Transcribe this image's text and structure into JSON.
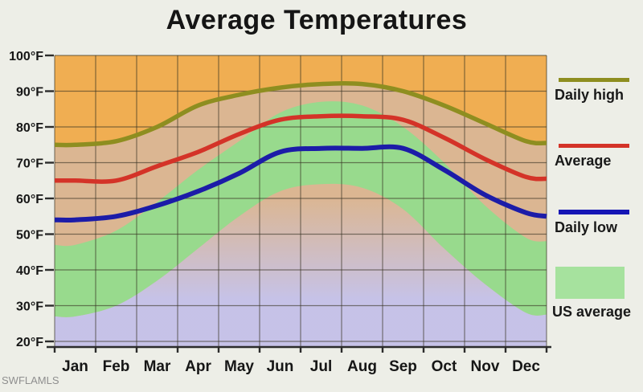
{
  "chart_data": {
    "type": "line",
    "title": "Average Temperatures",
    "categories": [
      "Jan",
      "Feb",
      "Mar",
      "Apr",
      "May",
      "Jun",
      "Jul",
      "Aug",
      "Sep",
      "Oct",
      "Nov",
      "Dec"
    ],
    "y_ticks": [
      100,
      90,
      80,
      70,
      60,
      50,
      40,
      30,
      20
    ],
    "y_unit": "°F",
    "ylim": [
      20,
      100
    ],
    "grid": true,
    "legend_position": "right",
    "series": [
      {
        "name": "Daily high",
        "color": "#8e8e20",
        "values": [
          75,
          76,
          80,
          86,
          89,
          91,
          92,
          92,
          90,
          86,
          81,
          76
        ]
      },
      {
        "name": "Average",
        "color": "#d43328",
        "values": [
          65,
          65,
          69,
          73,
          78,
          82,
          83,
          83,
          82,
          77,
          71,
          66
        ]
      },
      {
        "name": "Daily low",
        "color": "#1c1ca8",
        "values": [
          54,
          55,
          58,
          62,
          67,
          73,
          74,
          74,
          74,
          68,
          61,
          56
        ]
      }
    ],
    "us_average_band": {
      "name": "US average",
      "high": [
        47,
        51,
        59,
        68,
        76,
        84,
        87,
        86,
        80,
        70,
        58,
        49
      ],
      "low": [
        27,
        30,
        37,
        46,
        55,
        62,
        64,
        63,
        57,
        46,
        36,
        28
      ],
      "color": "rgba(140,224,140,0.85)"
    },
    "background_colors": {
      "above_high_zone": "#f0ae52",
      "local_band_overlay": "rgba(210,186,170,0.72)",
      "below_us_low_zone": "rgba(197,195,236,0.95)"
    },
    "gridline_color": "rgba(55,50,35,0.6)",
    "axis_color": "#2c2c2c",
    "legend": [
      {
        "label": "Daily high",
        "swatch": "line",
        "color": "#8e8e20"
      },
      {
        "label": "Average",
        "swatch": "line",
        "color": "#d43328"
      },
      {
        "label": "Daily low",
        "swatch": "line",
        "color": "#1515b5"
      },
      {
        "label": "US average",
        "swatch": "area",
        "color": "#a6e29e"
      }
    ],
    "watermark": "SWFLAMLS"
  }
}
